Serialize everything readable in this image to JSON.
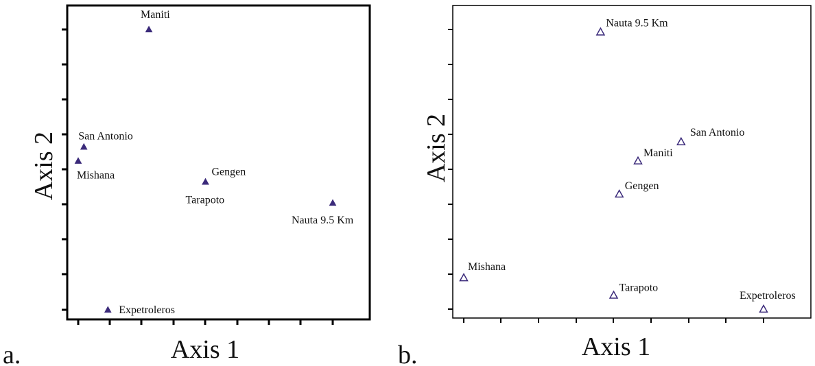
{
  "chart_data": [
    {
      "type": "scatter",
      "panel_label": "a.",
      "xlabel": "Axis 1",
      "ylabel": "Axis 2",
      "xlim": [
        0,
        9
      ],
      "ylim": [
        0,
        8
      ],
      "marker": "filled-triangle",
      "marker_color": "#3b2a7a",
      "grid": false,
      "points": [
        {
          "label": "Maniti",
          "x": 2.5,
          "y": 8.0
        },
        {
          "label": "San Antonio",
          "x": 0.2,
          "y": 4.65
        },
        {
          "label": "Mishana",
          "x": 0.0,
          "y": 4.25
        },
        {
          "label": "Gengen",
          "x": 4.5,
          "y": 3.65
        },
        {
          "label": "Tarapoto",
          "x": 4.5,
          "y": 3.65
        },
        {
          "label": "Nauta 9.5 Km",
          "x": 9.0,
          "y": 3.05
        },
        {
          "label": "Expetroleros",
          "x": 1.05,
          "y": 0.0
        }
      ]
    },
    {
      "type": "scatter",
      "panel_label": "b.",
      "xlabel": "Axis 1",
      "ylabel": "Axis 2",
      "xlim": [
        0,
        8
      ],
      "ylim": [
        0,
        8
      ],
      "marker": "open-triangle",
      "marker_color": "#3b2a7a",
      "grid": false,
      "points": [
        {
          "label": "Nauta 9.5 Km",
          "x": 3.65,
          "y": 7.95
        },
        {
          "label": "San Antonio",
          "x": 5.8,
          "y": 4.8
        },
        {
          "label": "Maniti",
          "x": 4.65,
          "y": 4.25
        },
        {
          "label": "Gengen",
          "x": 4.15,
          "y": 3.3
        },
        {
          "label": "Mishana",
          "x": 0.0,
          "y": 0.9
        },
        {
          "label": "Tarapoto",
          "x": 4.0,
          "y": 0.4
        },
        {
          "label": "Expetroleros",
          "x": 8.0,
          "y": 0.0
        }
      ]
    }
  ]
}
